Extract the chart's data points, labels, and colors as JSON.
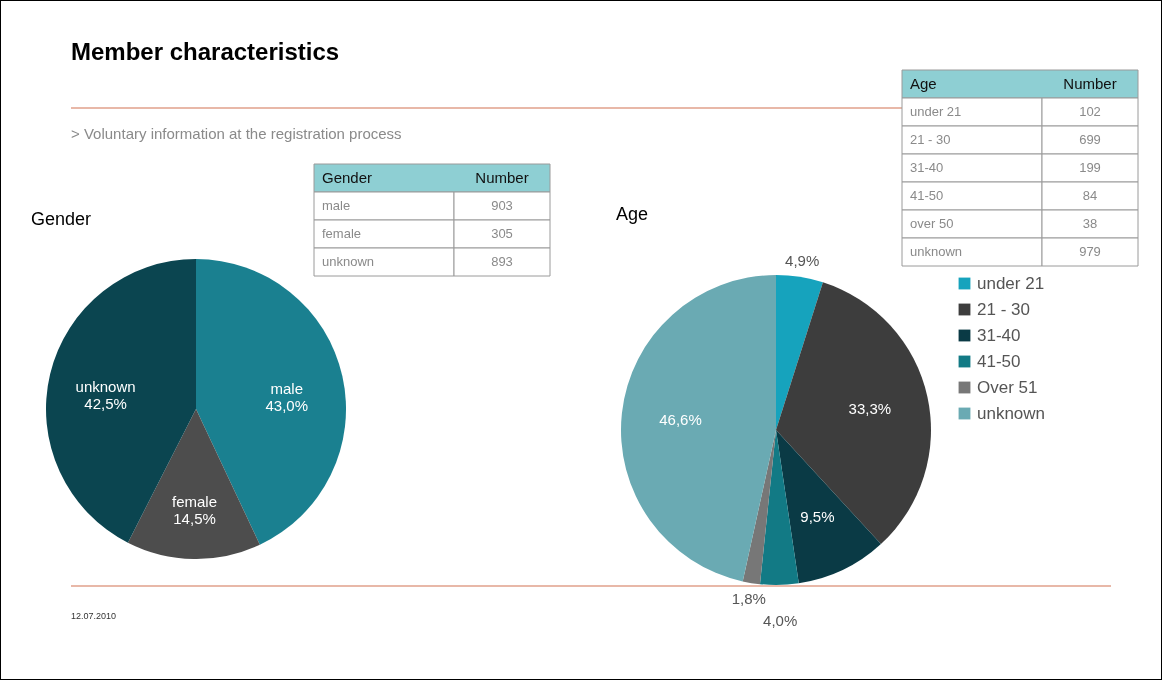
{
  "chart_data": [
    {
      "type": "other",
      "title": "Member characteristics",
      "subtitle": "> Voluntary information at the registration process",
      "annotations": [
        "12.07.2010"
      ]
    },
    {
      "type": "pie",
      "title": "Gender",
      "categories": [
        "male",
        "female",
        "unknown"
      ],
      "values": [
        43.0,
        14.5,
        42.5
      ],
      "colors": [
        "#1a8090",
        "#4d4d4d",
        "#0b4550"
      ],
      "value_labels": [
        "43,0%",
        "14,5%",
        "42,5%"
      ],
      "legend": false
    },
    {
      "type": "other",
      "xlabel": "Gender",
      "ylabel": "Number",
      "categories": [
        "male",
        "female",
        "unknown"
      ],
      "values": [
        903,
        305,
        893
      ],
      "data_labels": true
    },
    {
      "type": "pie",
      "title": "Age",
      "categories": [
        "under 21",
        "21 - 30",
        "31-40",
        "41-50",
        "Over 51",
        "unknown"
      ],
      "values": [
        4.9,
        33.3,
        9.5,
        4.0,
        1.8,
        46.6
      ],
      "colors": [
        "#16a3bd",
        "#3d3d3d",
        "#0a3a45",
        "#127a85",
        "#777777",
        "#6aaab3"
      ],
      "value_labels": [
        "4,9%",
        "33,3%",
        "9,5%",
        "4,0%",
        "1,8%",
        "46,6%"
      ],
      "legend": "right"
    },
    {
      "type": "other",
      "xlabel": "Age",
      "ylabel": "Number",
      "categories": [
        "under 21",
        "21 - 30",
        "31-40",
        "41-50",
        "over 50",
        "unknown"
      ],
      "values": [
        102,
        699,
        199,
        84,
        38,
        979
      ],
      "data_labels": true
    }
  ]
}
